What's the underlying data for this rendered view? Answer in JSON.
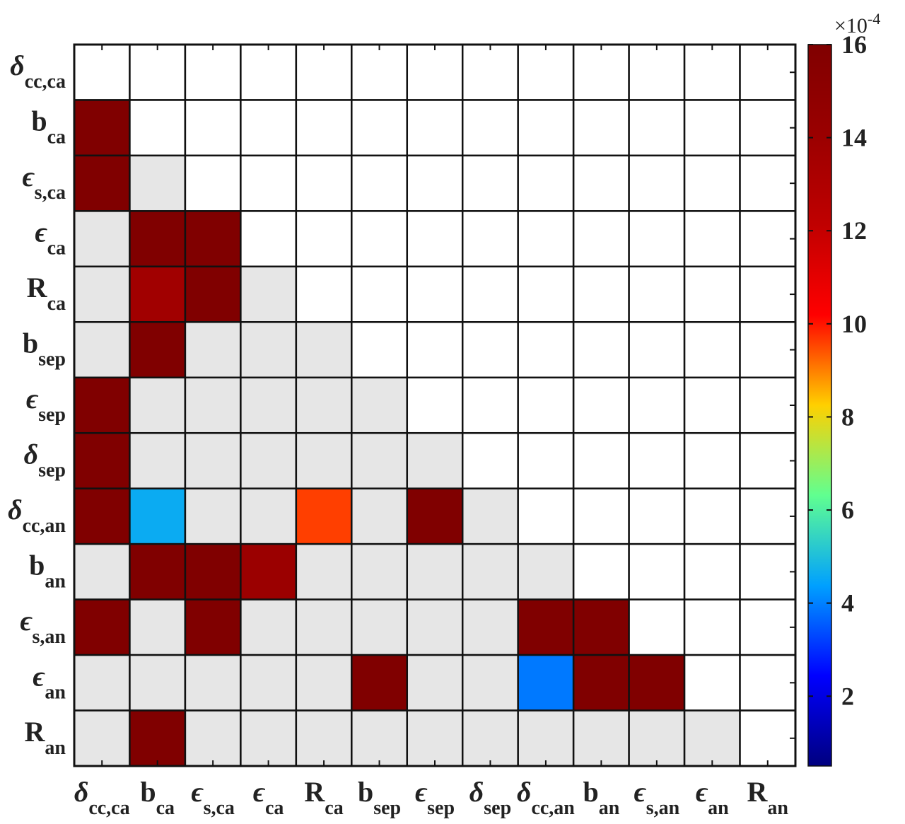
{
  "chart_data": {
    "type": "heatmap",
    "categories": [
      {
        "symbol": "δ",
        "subscript": "cc,ca"
      },
      {
        "symbol": "b",
        "subscript": "ca"
      },
      {
        "symbol": "ϵ",
        "subscript": "s,ca"
      },
      {
        "symbol": "ϵ",
        "subscript": "ca"
      },
      {
        "symbol": "R",
        "subscript": "ca"
      },
      {
        "symbol": "b",
        "subscript": "sep"
      },
      {
        "symbol": "ϵ",
        "subscript": "sep"
      },
      {
        "symbol": "δ",
        "subscript": "sep"
      },
      {
        "symbol": "δ",
        "subscript": "cc,an"
      },
      {
        "symbol": "b",
        "subscript": "an"
      },
      {
        "symbol": "ϵ",
        "subscript": "s,an"
      },
      {
        "symbol": "ϵ",
        "subscript": "an"
      },
      {
        "symbol": "R",
        "subscript": "an"
      }
    ],
    "values": [
      [
        null,
        null,
        null,
        null,
        null,
        null,
        null,
        null,
        null,
        null,
        null,
        null,
        null
      ],
      [
        16,
        null,
        null,
        null,
        null,
        null,
        null,
        null,
        null,
        null,
        null,
        null,
        null
      ],
      [
        16,
        0,
        null,
        null,
        null,
        null,
        null,
        null,
        null,
        null,
        null,
        null,
        null
      ],
      [
        0,
        16,
        16,
        null,
        null,
        null,
        null,
        null,
        null,
        null,
        null,
        null,
        null
      ],
      [
        0,
        13.7,
        16,
        0,
        null,
        null,
        null,
        null,
        null,
        null,
        null,
        null,
        null
      ],
      [
        0,
        16,
        0,
        0,
        0,
        null,
        null,
        null,
        null,
        null,
        null,
        null,
        null
      ],
      [
        16,
        0,
        0,
        0,
        0,
        0,
        null,
        null,
        null,
        null,
        null,
        null,
        null
      ],
      [
        16,
        0,
        0,
        0,
        0,
        0,
        0,
        null,
        null,
        null,
        null,
        null,
        null
      ],
      [
        16,
        4.6,
        0,
        0,
        9.6,
        0,
        16,
        0,
        null,
        null,
        null,
        null,
        null
      ],
      [
        0,
        16,
        16,
        14,
        0,
        0,
        0,
        0,
        0,
        null,
        null,
        null,
        null
      ],
      [
        16,
        0,
        16,
        0,
        0,
        0,
        0,
        0,
        16,
        16,
        null,
        null,
        null
      ],
      [
        0,
        0,
        0,
        0,
        0,
        16,
        0,
        0,
        3.9,
        16,
        16,
        null,
        null
      ],
      [
        0,
        16,
        0,
        0,
        0,
        0,
        0,
        0,
        0,
        0,
        0,
        0,
        null
      ]
    ],
    "zlim": [
      0.5,
      16
    ],
    "zticks": [
      2,
      4,
      6,
      8,
      10,
      12,
      14,
      16
    ],
    "colormap": [
      "#00007f",
      "#0000ff",
      "#00a0ff",
      "#60ff90",
      "#ffd000",
      "#ff0000",
      "#c00000",
      "#9a0000",
      "#800000"
    ],
    "under_color": "#e6e6e6",
    "null_color": "#ffffff",
    "colorbar_exponent": {
      "base": "×10",
      "power": "-4"
    }
  }
}
